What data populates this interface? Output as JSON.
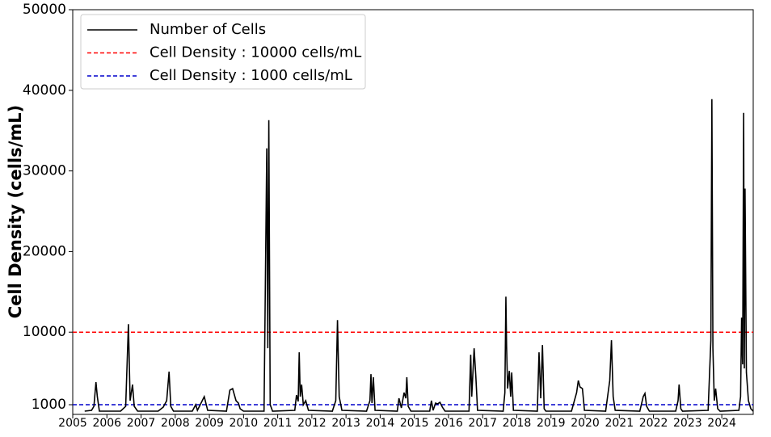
{
  "chart_data": {
    "type": "line",
    "y_label": "Cell Density (cells/mL)",
    "x": [
      2005.35,
      2005.55,
      2005.62,
      2005.68,
      2005.72,
      2005.78,
      2006.4,
      2006.55,
      2006.63,
      2006.68,
      2006.75,
      2006.8,
      2006.9,
      2007.5,
      2007.65,
      2007.75,
      2007.82,
      2007.87,
      2007.95,
      2008.5,
      2008.6,
      2008.65,
      2008.85,
      2008.95,
      2009.5,
      2009.6,
      2009.68,
      2009.78,
      2009.85,
      2009.9,
      2010.0,
      2010.6,
      2010.68,
      2010.71,
      2010.74,
      2010.78,
      2010.85,
      2011.5,
      2011.55,
      2011.6,
      2011.63,
      2011.66,
      2011.7,
      2011.75,
      2011.82,
      2011.9,
      2012.6,
      2012.7,
      2012.75,
      2012.8,
      2012.88,
      2013.6,
      2013.7,
      2013.73,
      2013.76,
      2013.8,
      2013.85,
      2014.5,
      2014.55,
      2014.62,
      2014.7,
      2014.75,
      2014.78,
      2014.82,
      2014.9,
      2015.45,
      2015.5,
      2015.55,
      2015.62,
      2015.68,
      2015.75,
      2015.82,
      2015.9,
      2016.6,
      2016.65,
      2016.68,
      2016.75,
      2016.8,
      2016.85,
      2017.6,
      2017.65,
      2017.68,
      2017.7,
      2017.73,
      2017.78,
      2017.82,
      2017.85,
      2017.9,
      2018.6,
      2018.65,
      2018.7,
      2018.75,
      2018.8,
      2018.85,
      2019.6,
      2019.75,
      2019.8,
      2019.85,
      2019.92,
      2019.98,
      2020.6,
      2020.72,
      2020.77,
      2020.82,
      2020.88,
      2021.6,
      2021.7,
      2021.75,
      2021.8,
      2021.88,
      2022.65,
      2022.72,
      2022.75,
      2022.8,
      2022.85,
      2023.6,
      2023.68,
      2023.71,
      2023.74,
      2023.78,
      2023.82,
      2023.88,
      2023.95,
      2024.5,
      2024.55,
      2024.58,
      2024.61,
      2024.64,
      2024.66,
      2024.68,
      2024.72,
      2024.78,
      2024.85,
      2024.92
    ],
    "series": [
      {
        "name": "Number of Cells",
        "color": "#000000",
        "values": [
          200,
          300,
          800,
          3800,
          2000,
          200,
          200,
          800,
          11000,
          1500,
          3500,
          800,
          200,
          200,
          700,
          1500,
          5100,
          800,
          200,
          200,
          1000,
          300,
          2000,
          300,
          200,
          2800,
          3000,
          1500,
          1200,
          500,
          200,
          200,
          32800,
          8000,
          36300,
          1000,
          200,
          300,
          2200,
          1400,
          7500,
          2000,
          3500,
          1000,
          1500,
          300,
          200,
          1500,
          11500,
          2000,
          300,
          200,
          1500,
          4800,
          1200,
          4400,
          300,
          200,
          1800,
          600,
          2500,
          1800,
          4400,
          800,
          200,
          200,
          1500,
          300,
          1200,
          1100,
          1300,
          700,
          200,
          200,
          7200,
          2000,
          8000,
          4500,
          300,
          200,
          2500,
          14400,
          8300,
          3000,
          5200,
          2000,
          5000,
          300,
          200,
          7500,
          1800,
          8400,
          500,
          200,
          200,
          2500,
          4000,
          3200,
          3000,
          300,
          200,
          4000,
          9000,
          2000,
          300,
          200,
          2000,
          2400,
          800,
          200,
          200,
          1500,
          3500,
          500,
          200,
          300,
          9000,
          38900,
          8000,
          1500,
          3000,
          500,
          200,
          300,
          2000,
          11800,
          6000,
          37200,
          5500,
          27800,
          5000,
          1500,
          500,
          200
        ]
      }
    ],
    "hlines": [
      {
        "name": "Cell Density : 10000 cells/mL",
        "color": "#ff0000",
        "value": 10000
      },
      {
        "name": "Cell Density : 1000 cells/mL",
        "color": "#0000cc",
        "value": 1000
      }
    ],
    "xlim": [
      2005,
      2024.92
    ],
    "xticks": [
      2005,
      2006,
      2007,
      2008,
      2009,
      2010,
      2011,
      2012,
      2013,
      2014,
      2015,
      2016,
      2017,
      2018,
      2019,
      2020,
      2021,
      2022,
      2023,
      2024
    ],
    "ylim": [
      -200,
      50000
    ],
    "yticks": [
      1000,
      10000,
      20000,
      30000,
      40000,
      50000
    ],
    "legend": "upper left"
  }
}
